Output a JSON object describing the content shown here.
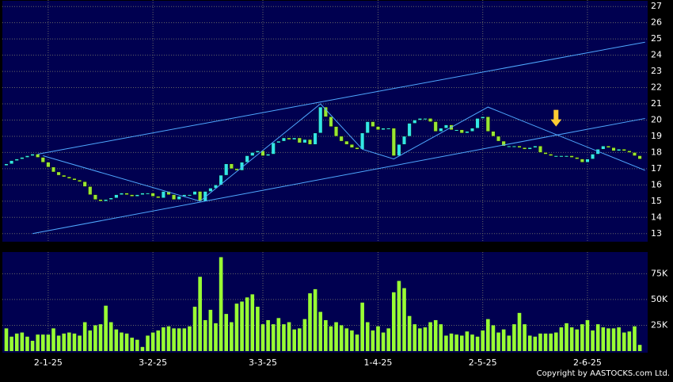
{
  "chart_data": {
    "type": "candlestick",
    "up_color": "#33e6e6",
    "down_color": "#99e633",
    "volume_color": "#99ff33",
    "line_color": "#4fa8ff",
    "arrow_color": "#ffcc33",
    "open": [
      17.2,
      17.3,
      17.5,
      17.6,
      17.7,
      17.8,
      17.9,
      17.7,
      17.4,
      17.1,
      16.8,
      16.6,
      16.5,
      16.4,
      16.3,
      16.2,
      15.9,
      15.4,
      15.1,
      15.0,
      15.1,
      15.2,
      15.4,
      15.5,
      15.4,
      15.3,
      15.4,
      15.5,
      15.5,
      15.3,
      15.2,
      15.6,
      15.4,
      15.1,
      15.3,
      15.4,
      15.4,
      15.6,
      15.0,
      15.6,
      15.8,
      16.0,
      16.6,
      17.3,
      17.0,
      16.9,
      17.4,
      17.8,
      18.0,
      18.1,
      17.8,
      17.9,
      18.6,
      18.7,
      18.9,
      18.8,
      18.9,
      18.6,
      18.8,
      18.5,
      19.2,
      20.8,
      20.2,
      19.6,
      19.0,
      18.7,
      18.5,
      18.3,
      18.2,
      19.2,
      19.9,
      19.6,
      19.4,
      19.5,
      19.5,
      17.8,
      18.5,
      19.0,
      19.8,
      20.0,
      20.1,
      20.1,
      19.9,
      19.3,
      19.5,
      19.7,
      19.4,
      19.4,
      19.2,
      19.3,
      19.5,
      20.1,
      20.2,
      19.3,
      19.0,
      18.7,
      18.4,
      18.4,
      18.4,
      18.3,
      18.2,
      18.3,
      18.4,
      18.0,
      17.9,
      17.8,
      17.8,
      17.8,
      17.8,
      17.7,
      17.6,
      17.4,
      17.6,
      17.9,
      18.2,
      18.4,
      18.3,
      18.1,
      18.2,
      18.1,
      18.0,
      17.8
    ],
    "close": [
      17.3,
      17.5,
      17.6,
      17.7,
      17.8,
      17.9,
      17.7,
      17.4,
      17.1,
      16.8,
      16.6,
      16.5,
      16.4,
      16.3,
      16.2,
      15.9,
      15.4,
      15.1,
      15.0,
      15.1,
      15.2,
      15.4,
      15.5,
      15.4,
      15.3,
      15.4,
      15.5,
      15.5,
      15.3,
      15.2,
      15.6,
      15.4,
      15.1,
      15.3,
      15.4,
      15.4,
      15.6,
      15.0,
      15.6,
      15.8,
      16.0,
      16.6,
      17.3,
      17.0,
      16.9,
      17.4,
      17.8,
      18.0,
      18.1,
      17.8,
      17.9,
      18.6,
      18.7,
      18.9,
      18.8,
      18.9,
      18.6,
      18.8,
      18.5,
      19.2,
      20.8,
      20.2,
      19.6,
      19.0,
      18.7,
      18.5,
      18.3,
      18.2,
      19.2,
      19.9,
      19.6,
      19.4,
      19.5,
      19.5,
      17.8,
      18.5,
      19.0,
      19.8,
      20.0,
      20.1,
      20.1,
      19.9,
      19.3,
      19.5,
      19.7,
      19.4,
      19.4,
      19.2,
      19.3,
      19.5,
      20.1,
      20.2,
      19.3,
      19.0,
      18.7,
      18.4,
      18.4,
      18.4,
      18.3,
      18.2,
      18.3,
      18.4,
      18.0,
      17.9,
      17.8,
      17.8,
      17.8,
      17.8,
      17.7,
      17.6,
      17.4,
      17.6,
      17.9,
      18.2,
      18.4,
      18.3,
      18.1,
      18.2,
      18.1,
      18.0,
      17.8,
      17.6
    ],
    "volume": [
      22,
      14,
      17,
      18,
      14,
      10,
      16,
      16,
      16,
      22,
      15,
      17,
      18,
      17,
      15,
      28,
      20,
      25,
      26,
      44,
      28,
      21,
      18,
      17,
      13,
      11,
      4,
      15,
      18,
      20,
      23,
      24,
      22,
      22,
      22,
      24,
      43,
      72,
      30,
      40,
      27,
      91,
      36,
      28,
      46,
      48,
      52,
      55,
      43,
      26,
      30,
      26,
      32,
      26,
      28,
      21,
      22,
      31,
      56,
      60,
      38,
      30,
      24,
      28,
      25,
      22,
      20,
      16,
      47,
      28,
      20,
      24,
      18,
      22,
      57,
      68,
      61,
      34,
      26,
      22,
      23,
      28,
      30,
      26,
      15,
      17,
      16,
      15,
      19,
      16,
      14,
      20,
      31,
      25,
      18,
      21,
      15,
      26,
      37,
      26,
      15,
      14,
      17,
      17,
      17,
      18,
      23,
      27,
      23,
      21,
      26,
      30,
      20,
      26,
      23,
      22,
      22,
      23,
      18,
      19,
      24,
      6
    ],
    "xlim": [
      -0.5,
      122
    ],
    "xticks": [
      {
        "value": 8,
        "label": "2-1-25"
      },
      {
        "value": 28,
        "label": "3-2-25"
      },
      {
        "value": 49,
        "label": "3-3-25"
      },
      {
        "value": 71,
        "label": "1-4-25"
      },
      {
        "value": 91,
        "label": "2-5-25"
      },
      {
        "value": 111,
        "label": "2-6-25"
      }
    ],
    "ylim": [
      12.5,
      27.4
    ],
    "yticks": [
      13,
      14,
      15,
      16,
      17,
      18,
      19,
      20,
      21,
      22,
      23,
      24,
      25,
      26,
      27
    ],
    "vlim": [
      0,
      96
    ],
    "vticks": [
      {
        "value": 25,
        "label": "25K"
      },
      {
        "value": 50,
        "label": "50K"
      },
      {
        "value": 75,
        "label": "75K"
      }
    ],
    "trend_lines": [
      {
        "x": [
          6,
          122
        ],
        "y": [
          17.9,
          24.8
        ]
      },
      {
        "x": [
          5,
          122
        ],
        "y": [
          13.0,
          20.1
        ]
      },
      {
        "x": [
          7,
          37,
          60,
          68,
          74,
          92,
          122
        ],
        "y": [
          17.8,
          15.0,
          21.0,
          18.2,
          17.6,
          20.8,
          16.9
        ]
      }
    ],
    "arrow": {
      "x": 105,
      "y": 19.6
    },
    "copyright": "Copyright by AASTOCKS.com Ltd."
  }
}
